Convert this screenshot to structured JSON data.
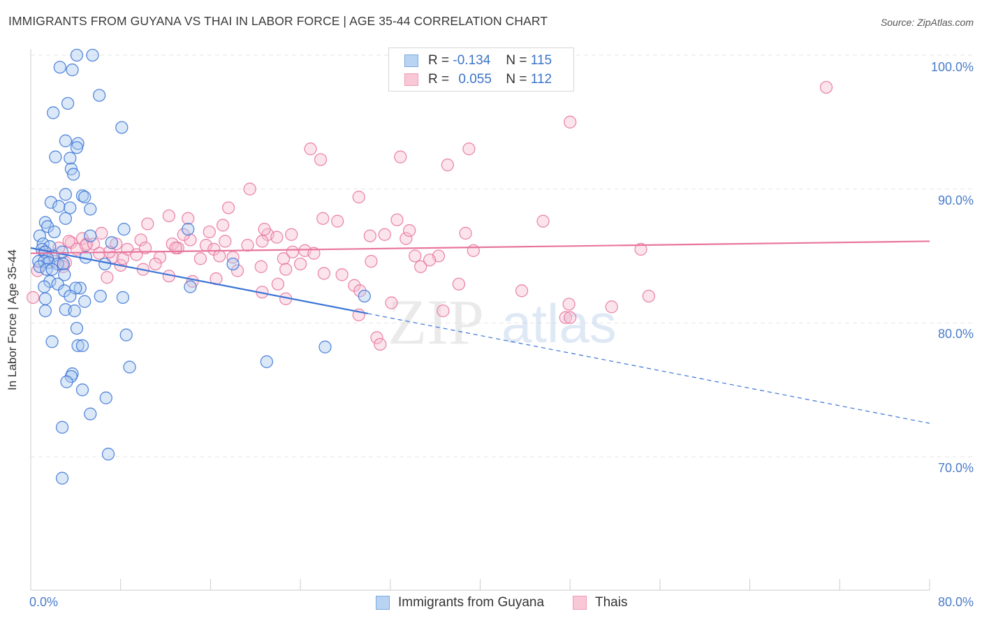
{
  "title": "IMMIGRANTS FROM GUYANA VS THAI IN LABOR FORCE | AGE 35-44 CORRELATION CHART",
  "source": "Source: ZipAtlas.com",
  "watermark": {
    "zip": "ZIP",
    "atlas": "atlas"
  },
  "legend": {
    "rows": [
      {
        "r_label": "R =",
        "r_value": "-0.134",
        "n_label": "N =",
        "n_value": "115",
        "color": "#7baae0",
        "fill": "#b9d3f3"
      },
      {
        "r_label": "R =",
        "r_value": "0.055",
        "n_label": "N =",
        "n_value": "112",
        "color": "#f09bb7",
        "fill": "#f9c8d7"
      }
    ]
  },
  "bottom_legend": {
    "guyana": "Immigrants from Guyana",
    "thai": "Thais"
  },
  "axes": {
    "ylabel": "In Labor Force | Age 35-44",
    "xmin_label": "0.0%",
    "xmax_label": "80.0%",
    "yticks": [
      "100.0%",
      "90.0%",
      "80.0%",
      "70.0%"
    ]
  },
  "colors": {
    "blue": "#3b74d6",
    "blue_fill": "#a9c8ee",
    "pink": "#e8759e",
    "pink_fill": "#f6bfd1",
    "grid": "#e4e4e4"
  },
  "chart_data": {
    "type": "scatter",
    "title": "IMMIGRANTS FROM GUYANA VS THAI IN LABOR FORCE | AGE 35-44 CORRELATION CHART",
    "xlabel": "",
    "ylabel": "In Labor Force | Age 35-44",
    "xlim": [
      0,
      80
    ],
    "ylim": [
      60,
      102
    ],
    "series": [
      {
        "name": "Immigrants from Guyana",
        "R": -0.134,
        "N": 115,
        "trend": {
          "x": [
            0,
            30
          ],
          "y": [
            85.6,
            80.7
          ],
          "dashed_to": [
            80,
            72.5
          ]
        },
        "points": [
          [
            4.1,
            100.0
          ],
          [
            5.5,
            100.0
          ],
          [
            2.6,
            99.1
          ],
          [
            3.7,
            98.9
          ],
          [
            6.1,
            97.0
          ],
          [
            3.3,
            96.4
          ],
          [
            2.0,
            95.7
          ],
          [
            8.1,
            94.6
          ],
          [
            3.1,
            93.6
          ],
          [
            4.2,
            93.4
          ],
          [
            4.1,
            93.1
          ],
          [
            2.2,
            92.4
          ],
          [
            3.5,
            92.3
          ],
          [
            3.6,
            91.5
          ],
          [
            3.8,
            91.1
          ],
          [
            3.1,
            89.6
          ],
          [
            4.6,
            89.5
          ],
          [
            4.8,
            89.4
          ],
          [
            1.8,
            89.0
          ],
          [
            2.5,
            88.7
          ],
          [
            3.5,
            88.6
          ],
          [
            5.3,
            88.5
          ],
          [
            3.1,
            87.8
          ],
          [
            1.3,
            87.5
          ],
          [
            1.5,
            87.2
          ],
          [
            8.3,
            87.0
          ],
          [
            14.0,
            87.0
          ],
          [
            2.1,
            86.8
          ],
          [
            0.8,
            86.5
          ],
          [
            5.3,
            86.5
          ],
          [
            7.2,
            86.0
          ],
          [
            1.1,
            85.9
          ],
          [
            1.7,
            85.7
          ],
          [
            1.0,
            85.5
          ],
          [
            1.3,
            85.3
          ],
          [
            2.8,
            85.3
          ],
          [
            2.0,
            85.0
          ],
          [
            4.9,
            84.9
          ],
          [
            1.5,
            84.8
          ],
          [
            0.7,
            84.6
          ],
          [
            1.2,
            84.6
          ],
          [
            1.6,
            84.5
          ],
          [
            2.4,
            84.4
          ],
          [
            2.9,
            84.4
          ],
          [
            6.6,
            84.4
          ],
          [
            18.0,
            84.4
          ],
          [
            0.8,
            84.2
          ],
          [
            1.4,
            84.0
          ],
          [
            1.9,
            84.0
          ],
          [
            3.0,
            83.6
          ],
          [
            1.7,
            83.1
          ],
          [
            2.4,
            82.9
          ],
          [
            1.2,
            82.7
          ],
          [
            4.4,
            82.6
          ],
          [
            4.0,
            82.6
          ],
          [
            3.0,
            82.4
          ],
          [
            14.2,
            82.7
          ],
          [
            3.5,
            82.0
          ],
          [
            6.2,
            82.0
          ],
          [
            8.2,
            81.9
          ],
          [
            29.7,
            82.0
          ],
          [
            1.3,
            81.8
          ],
          [
            4.8,
            81.6
          ],
          [
            3.1,
            81.0
          ],
          [
            1.3,
            80.9
          ],
          [
            3.9,
            80.9
          ],
          [
            4.1,
            79.6
          ],
          [
            8.5,
            79.1
          ],
          [
            1.9,
            78.6
          ],
          [
            4.2,
            78.3
          ],
          [
            4.6,
            78.3
          ],
          [
            26.2,
            78.2
          ],
          [
            21.0,
            77.1
          ],
          [
            8.8,
            76.7
          ],
          [
            3.7,
            76.2
          ],
          [
            3.6,
            76.0
          ],
          [
            3.2,
            75.6
          ],
          [
            4.6,
            75.0
          ],
          [
            6.7,
            74.4
          ],
          [
            5.3,
            73.2
          ],
          [
            2.8,
            72.2
          ],
          [
            6.9,
            70.2
          ],
          [
            2.8,
            68.4
          ]
        ]
      },
      {
        "name": "Thais",
        "R": 0.055,
        "N": 112,
        "trend": {
          "x": [
            0,
            80
          ],
          "y": [
            85.2,
            86.1
          ]
        },
        "points": [
          [
            70.8,
            97.6
          ],
          [
            48.0,
            95.0
          ],
          [
            24.9,
            93.0
          ],
          [
            39.0,
            93.0
          ],
          [
            25.8,
            92.2
          ],
          [
            32.9,
            92.4
          ],
          [
            37.1,
            91.8
          ],
          [
            19.5,
            90.0
          ],
          [
            29.2,
            89.4
          ],
          [
            17.6,
            88.6
          ],
          [
            12.3,
            88.0
          ],
          [
            14.0,
            87.8
          ],
          [
            26.0,
            87.8
          ],
          [
            27.3,
            87.6
          ],
          [
            32.6,
            87.7
          ],
          [
            45.6,
            87.6
          ],
          [
            10.4,
            87.4
          ],
          [
            17.1,
            87.3
          ],
          [
            15.9,
            86.8
          ],
          [
            38.7,
            86.7
          ],
          [
            6.3,
            86.7
          ],
          [
            21.1,
            86.6
          ],
          [
            23.2,
            86.6
          ],
          [
            31.5,
            86.6
          ],
          [
            21.9,
            86.4
          ],
          [
            4.6,
            86.3
          ],
          [
            9.8,
            86.2
          ],
          [
            14.2,
            86.2
          ],
          [
            17.3,
            86.1
          ],
          [
            20.6,
            86.1
          ],
          [
            33.4,
            86.3
          ],
          [
            3.6,
            86.0
          ],
          [
            5.0,
            85.9
          ],
          [
            7.6,
            85.9
          ],
          [
            12.6,
            85.9
          ],
          [
            15.6,
            85.8
          ],
          [
            19.3,
            85.8
          ],
          [
            2.5,
            85.6
          ],
          [
            4.1,
            85.5
          ],
          [
            8.6,
            85.5
          ],
          [
            10.2,
            85.6
          ],
          [
            13.1,
            85.6
          ],
          [
            16.3,
            85.5
          ],
          [
            24.4,
            85.4
          ],
          [
            39.4,
            85.4
          ],
          [
            54.3,
            85.5
          ],
          [
            25.2,
            85.2
          ],
          [
            34.2,
            85.0
          ],
          [
            36.3,
            85.0
          ],
          [
            7.3,
            84.9
          ],
          [
            11.5,
            84.9
          ],
          [
            18.0,
            84.9
          ],
          [
            22.5,
            84.8
          ],
          [
            30.3,
            84.6
          ],
          [
            35.5,
            84.7
          ],
          [
            2.1,
            84.6
          ],
          [
            3.1,
            84.5
          ],
          [
            24.0,
            84.4
          ],
          [
            8.0,
            84.3
          ],
          [
            20.5,
            84.2
          ],
          [
            34.7,
            84.2
          ],
          [
            22.7,
            84.0
          ],
          [
            10.0,
            84.0
          ],
          [
            26.1,
            83.7
          ],
          [
            27.7,
            83.6
          ],
          [
            6.8,
            83.4
          ],
          [
            12.3,
            83.5
          ],
          [
            16.5,
            83.3
          ],
          [
            14.4,
            83.1
          ],
          [
            22.0,
            82.9
          ],
          [
            28.8,
            82.8
          ],
          [
            38.1,
            82.9
          ],
          [
            43.7,
            82.4
          ],
          [
            20.6,
            82.3
          ],
          [
            29.3,
            82.4
          ],
          [
            55.0,
            82.0
          ],
          [
            0.2,
            81.9
          ],
          [
            32.1,
            81.5
          ],
          [
            47.9,
            81.4
          ],
          [
            51.7,
            81.2
          ],
          [
            36.7,
            80.9
          ],
          [
            29.2,
            80.6
          ],
          [
            47.6,
            80.4
          ],
          [
            48.0,
            80.4
          ],
          [
            22.7,
            81.8
          ],
          [
            30.8,
            78.9
          ],
          [
            31.1,
            78.4
          ],
          [
            1.2,
            85.3
          ],
          [
            3.4,
            86.1
          ],
          [
            8.2,
            84.8
          ],
          [
            15.1,
            84.8
          ],
          [
            12.9,
            85.6
          ],
          [
            18.4,
            83.9
          ],
          [
            20.8,
            87.0
          ],
          [
            23.3,
            85.3
          ],
          [
            30.2,
            86.5
          ],
          [
            33.7,
            86.9
          ],
          [
            7.0,
            85.3
          ],
          [
            9.4,
            85.1
          ],
          [
            4.9,
            85.8
          ],
          [
            6.1,
            85.2
          ],
          [
            11.1,
            84.4
          ],
          [
            13.6,
            86.6
          ],
          [
            16.8,
            85.0
          ],
          [
            0.6,
            83.9
          ],
          [
            2.9,
            84.2
          ],
          [
            5.6,
            85.9
          ]
        ]
      }
    ]
  }
}
